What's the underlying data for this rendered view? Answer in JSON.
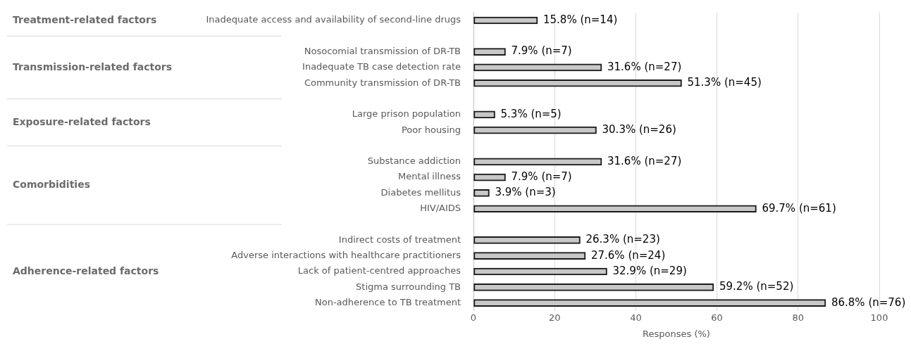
{
  "chart_data": {
    "type": "bar",
    "orientation": "horizontal",
    "xlabel": "Responses (%)",
    "categories": [
      "Inadequate access and availability of second-line drugs",
      null,
      "Nosocomial transmission of DR-TB",
      "Inadequate TB case detection rate",
      "Community transmission of DR-TB",
      null,
      "Large prison population",
      "Poor housing",
      null,
      "Substance addiction",
      "Mental illness",
      "Diabetes mellitus",
      "HIV/AIDS",
      null,
      "Indirect costs of treatment",
      "Adverse interactions with healthcare practitioners",
      "Lack of patient-centred approaches",
      "Stigma surrounding TB",
      "Non-adherence to TB treatment"
    ],
    "values": [
      15.8,
      null,
      7.9,
      31.6,
      51.3,
      null,
      5.3,
      30.3,
      null,
      31.6,
      7.9,
      3.9,
      69.7,
      null,
      26.3,
      27.6,
      32.9,
      59.2,
      86.8
    ],
    "value_labels": [
      "15.8% (n=14)",
      null,
      "7.9% (n=7)",
      "31.6% (n=27)",
      "51.3% (n=45)",
      null,
      "5.3% (n=5)",
      "30.3% (n=26)",
      null,
      "31.6% (n=27)",
      "7.9% (n=7)",
      "3.9% (n=3)",
      "69.7% (n=61)",
      null,
      "26.3% (n=23)",
      "27.6% (n=24)",
      "32.9% (n=29)",
      "59.2% (n=52)",
      "86.8% (n=76)"
    ],
    "color": "#c8c8c8",
    "xlim": [
      0,
      100
    ],
    "xticks": [
      0,
      20,
      40,
      60,
      80,
      100
    ],
    "grid": "x",
    "legend": false,
    "annotations": [
      "Treatment-related factors",
      "Transmission-related factors",
      "Exposure-related factors",
      "Comorbidities",
      "Adherence-related factors"
    ]
  }
}
